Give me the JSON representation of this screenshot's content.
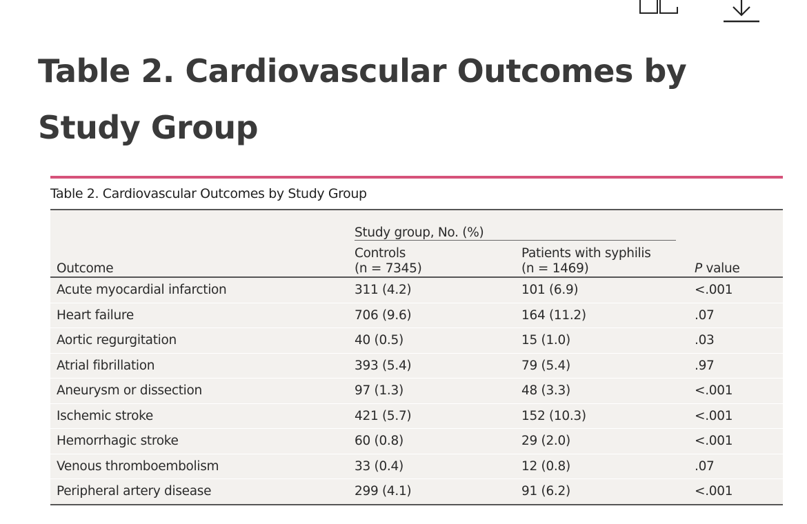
{
  "title": "Table 2.  Cardiovascular Outcomes by Study Group",
  "toolbar": {
    "split_view_icon": "split-view-icon",
    "download_icon": "download-icon"
  },
  "table": {
    "caption": "Table 2. Cardiovascular Outcomes by Study Group",
    "accent_color": "#d6527a",
    "group_header": "Study group, No. (%)",
    "headers": {
      "outcome": "Outcome",
      "controls_line1": "Controls",
      "controls_line2": "(n = 7345)",
      "patients_line1": "Patients with syphilis",
      "patients_line2": "(n = 1469)",
      "p_italic": "P",
      "p_rest": " value"
    },
    "rows": [
      {
        "outcome": "Acute myocardial infarction",
        "controls": "311 (4.2)",
        "patients": "101 (6.9)",
        "p": "<.001"
      },
      {
        "outcome": "Heart failure",
        "controls": "706 (9.6)",
        "patients": "164 (11.2)",
        "p": ".07"
      },
      {
        "outcome": "Aortic regurgitation",
        "controls": "40 (0.5)",
        "patients": "15 (1.0)",
        "p": ".03"
      },
      {
        "outcome": "Atrial fibrillation",
        "controls": "393 (5.4)",
        "patients": "79 (5.4)",
        "p": ".97"
      },
      {
        "outcome": "Aneurysm or dissection",
        "controls": "97 (1.3)",
        "patients": "48 (3.3)",
        "p": "<.001"
      },
      {
        "outcome": "Ischemic stroke",
        "controls": "421 (5.7)",
        "patients": "152 (10.3)",
        "p": "<.001"
      },
      {
        "outcome": "Hemorrhagic stroke",
        "controls": "60 (0.8)",
        "patients": "29 (2.0)",
        "p": "<.001"
      },
      {
        "outcome": "Venous thromboembolism",
        "controls": "33 (0.4)",
        "patients": "12 (0.8)",
        "p": ".07"
      },
      {
        "outcome": "Peripheral artery disease",
        "controls": "299 (4.1)",
        "patients": "91 (6.2)",
        "p": "<.001"
      }
    ]
  }
}
